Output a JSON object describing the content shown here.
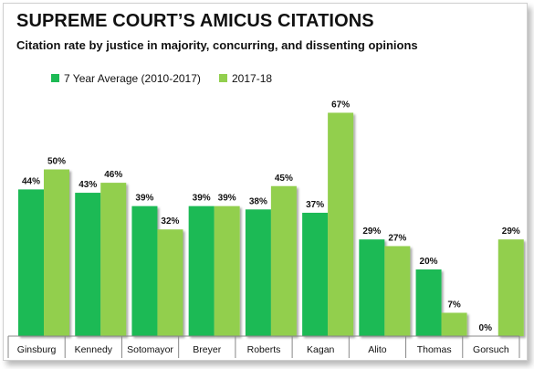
{
  "title": "SUPREME COURT’S AMICUS CITATIONS",
  "subtitle": "Citation rate by justice in majority, concurring, and dissenting opinions",
  "colors": {
    "series1": "#1dba55",
    "series2": "#92cf4e",
    "axis": "#888888"
  },
  "chart_data": {
    "type": "bar",
    "categories": [
      "Ginsburg",
      "Kennedy",
      "Sotomayor",
      "Breyer",
      "Roberts",
      "Kagan",
      "Alito",
      "Thomas",
      "Gorsuch"
    ],
    "series": [
      {
        "name": "7 Year Average (2010-2017)",
        "values": [
          44,
          43,
          39,
          39,
          38,
          37,
          29,
          20,
          0
        ],
        "labels": [
          "44%",
          "43%",
          "39%",
          "39%",
          "38%",
          "37%",
          "29%",
          "20%",
          "0%"
        ]
      },
      {
        "name": "2017-18",
        "values": [
          50,
          46,
          32,
          39,
          45,
          67,
          27,
          7,
          29
        ],
        "labels": [
          "50%",
          "46%",
          "32%",
          "39%",
          "45%",
          "67%",
          "27%",
          "7%",
          "29%"
        ]
      }
    ],
    "ylim": [
      0,
      70
    ],
    "unit": "%",
    "grid": false,
    "legend": "top-left"
  }
}
